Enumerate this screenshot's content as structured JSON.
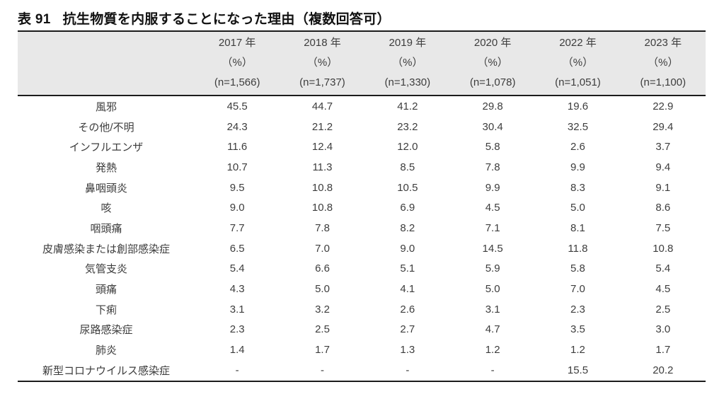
{
  "title": {
    "number": "表 91",
    "caption": "抗生物質を内服することになった理由（複数回答可）"
  },
  "table": {
    "columns": [
      {
        "year": "2017 年",
        "unit": "（%）",
        "n": "(n=1,566)"
      },
      {
        "year": "2018 年",
        "unit": "（%）",
        "n": "(n=1,737)"
      },
      {
        "year": "2019 年",
        "unit": "（%）",
        "n": "(n=1,330)"
      },
      {
        "year": "2020 年",
        "unit": "（%）",
        "n": "(n=1,078)"
      },
      {
        "year": "2022 年",
        "unit": "（%）",
        "n": "(n=1,051)"
      },
      {
        "year": "2023 年",
        "unit": "（%）",
        "n": "(n=1,100)"
      }
    ],
    "rows": [
      {
        "label": "風邪",
        "values": [
          "45.5",
          "44.7",
          "41.2",
          "29.8",
          "19.6",
          "22.9"
        ]
      },
      {
        "label": "その他/不明",
        "values": [
          "24.3",
          "21.2",
          "23.2",
          "30.4",
          "32.5",
          "29.4"
        ]
      },
      {
        "label": "インフルエンザ",
        "values": [
          "11.6",
          "12.4",
          "12.0",
          "5.8",
          "2.6",
          "3.7"
        ]
      },
      {
        "label": "発熱",
        "values": [
          "10.7",
          "11.3",
          "8.5",
          "7.8",
          "9.9",
          "9.4"
        ]
      },
      {
        "label": "鼻咽頭炎",
        "values": [
          "9.5",
          "10.8",
          "10.5",
          "9.9",
          "8.3",
          "9.1"
        ]
      },
      {
        "label": "咳",
        "values": [
          "9.0",
          "10.8",
          "6.9",
          "4.5",
          "5.0",
          "8.6"
        ]
      },
      {
        "label": "咽頭痛",
        "values": [
          "7.7",
          "7.8",
          "8.2",
          "7.1",
          "8.1",
          "7.5"
        ]
      },
      {
        "label": "皮膚感染または創部感染症",
        "values": [
          "6.5",
          "7.0",
          "9.0",
          "14.5",
          "11.8",
          "10.8"
        ]
      },
      {
        "label": "気管支炎",
        "values": [
          "5.4",
          "6.6",
          "5.1",
          "5.9",
          "5.8",
          "5.4"
        ]
      },
      {
        "label": "頭痛",
        "values": [
          "4.3",
          "5.0",
          "4.1",
          "5.0",
          "7.0",
          "4.5"
        ]
      },
      {
        "label": "下痢",
        "values": [
          "3.1",
          "3.2",
          "2.6",
          "3.1",
          "2.3",
          "2.5"
        ]
      },
      {
        "label": "尿路感染症",
        "values": [
          "2.3",
          "2.5",
          "2.7",
          "4.7",
          "3.5",
          "3.0"
        ]
      },
      {
        "label": "肺炎",
        "values": [
          "1.4",
          "1.7",
          "1.3",
          "1.2",
          "1.2",
          "1.7"
        ]
      },
      {
        "label": "新型コロナウイルス感染症",
        "values": [
          "-",
          "-",
          "-",
          "-",
          "15.5",
          "20.2"
        ]
      }
    ]
  },
  "colors": {
    "header_bg": "#e8e8e8",
    "border": "#1c1c1c",
    "text": "#3d3d3d",
    "title_text": "#111111"
  }
}
